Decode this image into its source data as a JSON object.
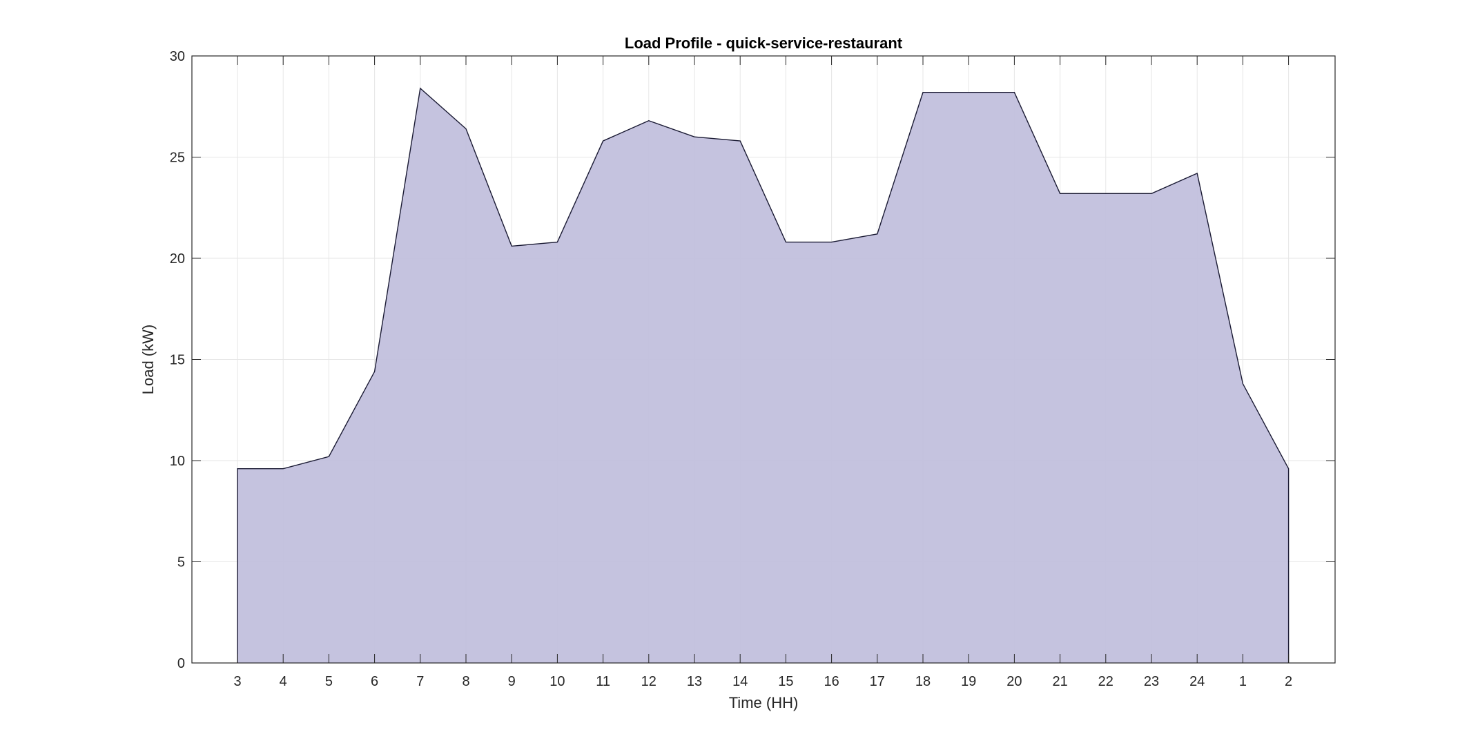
{
  "chart_data": {
    "type": "area",
    "title": "Load Profile - quick-service-restaurant",
    "xlabel": "Time (HH)",
    "ylabel": "Load (kW)",
    "x": [
      "3",
      "4",
      "5",
      "6",
      "7",
      "8",
      "9",
      "10",
      "11",
      "12",
      "13",
      "14",
      "15",
      "16",
      "17",
      "18",
      "19",
      "20",
      "21",
      "22",
      "23",
      "24",
      "1",
      "2"
    ],
    "values": [
      9.6,
      9.6,
      10.2,
      14.4,
      28.4,
      26.4,
      20.6,
      20.8,
      25.8,
      26.8,
      26.0,
      25.8,
      20.8,
      20.8,
      21.2,
      28.2,
      28.2,
      28.2,
      23.2,
      23.2,
      23.2,
      24.2,
      13.8,
      9.6
    ],
    "ylim": [
      0,
      30
    ],
    "yticks": [
      0,
      5,
      10,
      15,
      20,
      25,
      30
    ],
    "grid": true,
    "legend": "none",
    "colors": {
      "fill": "#c2c0dd",
      "line": "#1a1a33",
      "grid": "#e6e6e6",
      "axis": "#262626"
    }
  }
}
